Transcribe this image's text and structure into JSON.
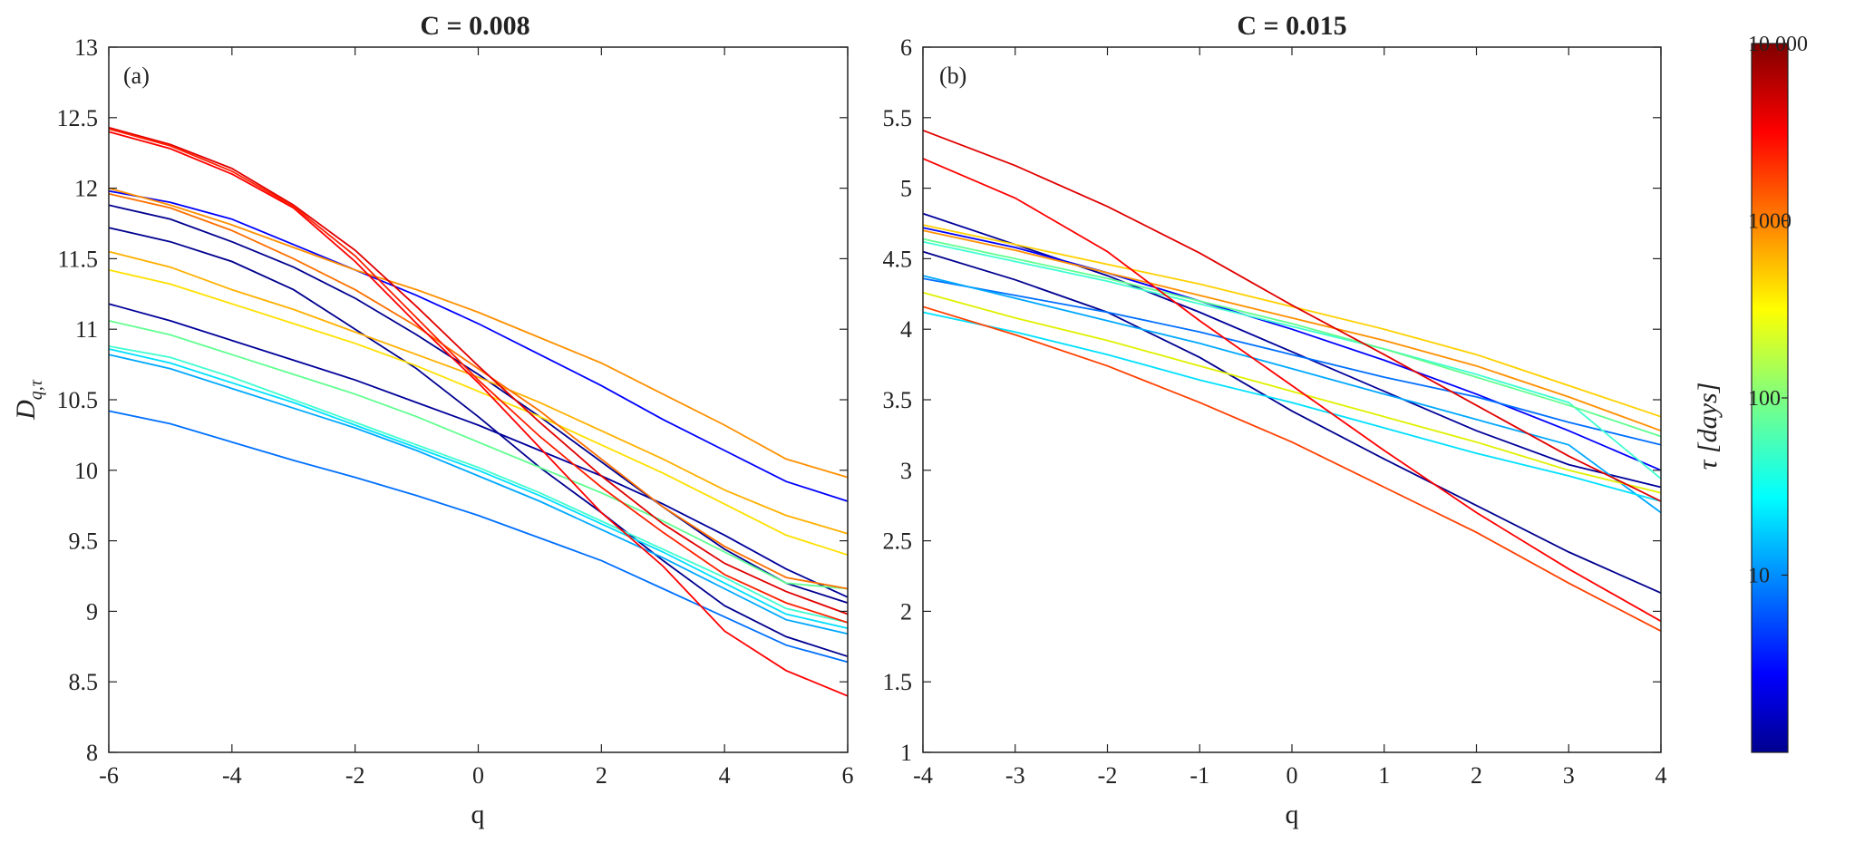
{
  "figure": {
    "colorbar": {
      "label": "τ [days]",
      "ticks": [
        {
          "value": 10,
          "label": "10"
        },
        {
          "value": 100,
          "label": "100"
        },
        {
          "value": 1000,
          "label": "1000"
        },
        {
          "value": 10000,
          "label": "10 000"
        }
      ],
      "range": [
        1,
        10000
      ],
      "scale": "log",
      "colormap": "jet"
    }
  },
  "chart_data": [
    {
      "type": "line",
      "panel": "(a)",
      "title": "C = 0.008",
      "xlabel": "q",
      "ylabel_main": "D",
      "ylabel_sub": "q,τ",
      "xlim": [
        -6,
        6
      ],
      "ylim": [
        8,
        13
      ],
      "xticks": [
        -6,
        -4,
        -2,
        0,
        2,
        4,
        6
      ],
      "yticks": [
        8,
        8.5,
        9,
        9.5,
        10,
        10.5,
        11,
        11.5,
        12,
        12.5,
        13
      ],
      "ytick_labels": [
        "8",
        "8.5",
        "9",
        "9.5",
        "10",
        "10.5",
        "11",
        "11.5",
        "12",
        "12.5",
        "13"
      ],
      "x": [
        -6,
        -5,
        -4,
        -3,
        -2,
        -1,
        0,
        1,
        2,
        3,
        4,
        5,
        6
      ],
      "series": [
        {
          "name": "τ=1",
          "color": "#00008f",
          "values": [
            11.88,
            11.78,
            11.62,
            11.44,
            11.22,
            10.96,
            10.68,
            10.38,
            10.06,
            9.74,
            9.44,
            9.2,
            9.06
          ]
        },
        {
          "name": "τ=1.3",
          "color": "#00008f",
          "values": [
            11.72,
            11.62,
            11.48,
            11.28,
            11.0,
            10.72,
            10.38,
            10.02,
            9.7,
            9.36,
            9.04,
            8.82,
            8.68
          ]
        },
        {
          "name": "τ=1.7",
          "color": "#00009a",
          "values": [
            11.18,
            11.06,
            10.92,
            10.78,
            10.64,
            10.48,
            10.32,
            10.14,
            9.96,
            9.76,
            9.54,
            9.3,
            9.1
          ]
        },
        {
          "name": "τ=2.2",
          "color": "#0000ff",
          "values": [
            11.98,
            11.9,
            11.78,
            11.6,
            11.42,
            11.24,
            11.04,
            10.82,
            10.6,
            10.36,
            10.14,
            9.92,
            9.78
          ]
        },
        {
          "name": "τ=3",
          "color": "#0070ff",
          "values": [
            10.42,
            10.33,
            10.2,
            10.07,
            9.95,
            9.82,
            9.68,
            9.52,
            9.36,
            9.16,
            8.96,
            8.76,
            8.64
          ]
        },
        {
          "name": "τ=5",
          "color": "#00a8ff",
          "values": [
            10.82,
            10.72,
            10.58,
            10.44,
            10.3,
            10.14,
            9.96,
            9.78,
            9.58,
            9.38,
            9.16,
            8.94,
            8.84
          ]
        },
        {
          "name": "τ=8",
          "color": "#00e0ff",
          "values": [
            10.86,
            10.76,
            10.62,
            10.48,
            10.32,
            10.16,
            10.0,
            9.82,
            9.62,
            9.42,
            9.2,
            8.98,
            8.88
          ]
        },
        {
          "name": "τ=10",
          "color": "#40ffd0",
          "values": [
            10.88,
            10.8,
            10.66,
            10.5,
            10.34,
            10.18,
            10.02,
            9.84,
            9.64,
            9.44,
            9.24,
            9.02,
            8.92
          ]
        },
        {
          "name": "τ=20",
          "color": "#60ff90",
          "values": [
            11.06,
            10.96,
            10.82,
            10.68,
            10.54,
            10.38,
            10.2,
            10.02,
            9.84,
            9.64,
            9.42,
            9.2,
            9.16
          ]
        },
        {
          "name": "τ=40",
          "color": "#ffe000",
          "values": [
            11.42,
            11.32,
            11.18,
            11.04,
            10.9,
            10.74,
            10.56,
            10.38,
            10.18,
            9.98,
            9.76,
            9.54,
            9.4
          ]
        },
        {
          "name": "τ=70",
          "color": "#ffb000",
          "values": [
            11.55,
            11.44,
            11.28,
            11.14,
            10.98,
            10.82,
            10.66,
            10.48,
            10.28,
            10.08,
            9.86,
            9.68,
            9.55
          ]
        },
        {
          "name": "τ=150",
          "color": "#ff9000",
          "values": [
            12.0,
            11.88,
            11.74,
            11.58,
            11.42,
            11.28,
            11.12,
            10.94,
            10.76,
            10.54,
            10.32,
            10.08,
            9.95
          ]
        },
        {
          "name": "τ=300",
          "color": "#ff7000",
          "values": [
            11.96,
            11.86,
            11.7,
            11.5,
            11.28,
            11.02,
            10.72,
            10.42,
            10.08,
            9.74,
            9.46,
            9.24,
            9.16
          ]
        },
        {
          "name": "τ=1000",
          "color": "#ff0000",
          "values": [
            12.4,
            12.28,
            12.1,
            11.86,
            11.48,
            11.04,
            10.62,
            10.16,
            9.7,
            9.32,
            8.86,
            8.58,
            8.4
          ]
        },
        {
          "name": "τ=2000",
          "color": "#e00000",
          "values": [
            12.43,
            12.31,
            12.14,
            11.88,
            11.56,
            11.16,
            10.74,
            10.34,
            9.96,
            9.62,
            9.34,
            9.14,
            8.98
          ]
        },
        {
          "name": "τ=4000",
          "color": "#ff2000",
          "values": [
            12.42,
            12.3,
            12.12,
            11.87,
            11.52,
            11.08,
            10.64,
            10.24,
            9.88,
            9.56,
            9.26,
            9.06,
            8.92
          ]
        }
      ]
    },
    {
      "type": "line",
      "panel": "(b)",
      "title": "C = 0.015",
      "xlabel": "q",
      "xlim": [
        -4,
        4
      ],
      "ylim": [
        1,
        6
      ],
      "xticks": [
        -4,
        -3,
        -2,
        -1,
        0,
        1,
        2,
        3,
        4
      ],
      "yticks": [
        1,
        1.5,
        2,
        2.5,
        3,
        3.5,
        4,
        4.5,
        5,
        5.5,
        6
      ],
      "ytick_labels": [
        "1",
        "1.5",
        "2",
        "2.5",
        "3",
        "3.5",
        "4",
        "4.5",
        "5",
        "5.5",
        "6"
      ],
      "x": [
        -4,
        -3,
        -2,
        -1,
        0,
        1,
        2,
        3,
        4
      ],
      "series": [
        {
          "name": "τ=1",
          "color": "#00008f",
          "values": [
            4.55,
            4.35,
            4.12,
            3.8,
            3.42,
            3.08,
            2.75,
            2.42,
            2.13
          ]
        },
        {
          "name": "τ=1.3",
          "color": "#00009a",
          "values": [
            4.82,
            4.6,
            4.38,
            4.12,
            3.84,
            3.56,
            3.28,
            3.04,
            2.88
          ]
        },
        {
          "name": "τ=2",
          "color": "#0000ff",
          "values": [
            4.72,
            4.58,
            4.4,
            4.2,
            4.0,
            3.78,
            3.54,
            3.28,
            3.0
          ]
        },
        {
          "name": "τ=3",
          "color": "#0070ff",
          "values": [
            4.36,
            4.24,
            4.12,
            3.98,
            3.82,
            3.66,
            3.52,
            3.34,
            3.18
          ]
        },
        {
          "name": "τ=5",
          "color": "#00a8ff",
          "values": [
            4.38,
            4.22,
            4.06,
            3.9,
            3.72,
            3.54,
            3.36,
            3.18,
            2.7
          ]
        },
        {
          "name": "τ=8",
          "color": "#00e0ff",
          "values": [
            4.12,
            3.98,
            3.82,
            3.64,
            3.48,
            3.3,
            3.12,
            2.96,
            2.78
          ]
        },
        {
          "name": "τ=10",
          "color": "#40ffd0",
          "values": [
            4.62,
            4.48,
            4.34,
            4.18,
            4.02,
            3.86,
            3.68,
            3.48,
            2.94
          ]
        },
        {
          "name": "τ=20",
          "color": "#60ff90",
          "values": [
            4.64,
            4.5,
            4.36,
            4.2,
            4.04,
            3.86,
            3.66,
            3.46,
            3.24
          ]
        },
        {
          "name": "τ=40",
          "color": "#e0f000",
          "values": [
            4.26,
            4.08,
            3.92,
            3.74,
            3.56,
            3.38,
            3.2,
            3.0,
            2.84
          ]
        },
        {
          "name": "τ=70",
          "color": "#ffd000",
          "values": [
            4.74,
            4.6,
            4.46,
            4.32,
            4.16,
            4.0,
            3.82,
            3.6,
            3.38
          ]
        },
        {
          "name": "τ=150",
          "color": "#ff9000",
          "values": [
            4.7,
            4.56,
            4.4,
            4.24,
            4.08,
            3.92,
            3.74,
            3.52,
            3.28
          ]
        },
        {
          "name": "τ=300",
          "color": "#ff4000",
          "values": [
            4.16,
            3.96,
            3.74,
            3.48,
            3.2,
            2.88,
            2.56,
            2.2,
            1.86
          ]
        },
        {
          "name": "τ=1000",
          "color": "#ff0000",
          "values": [
            5.21,
            4.93,
            4.55,
            4.06,
            3.6,
            3.14,
            2.7,
            2.3,
            1.93
          ]
        },
        {
          "name": "τ=2000",
          "color": "#e00000",
          "values": [
            5.41,
            5.16,
            4.87,
            4.54,
            4.17,
            3.82,
            3.46,
            3.1,
            2.78
          ]
        }
      ]
    }
  ]
}
